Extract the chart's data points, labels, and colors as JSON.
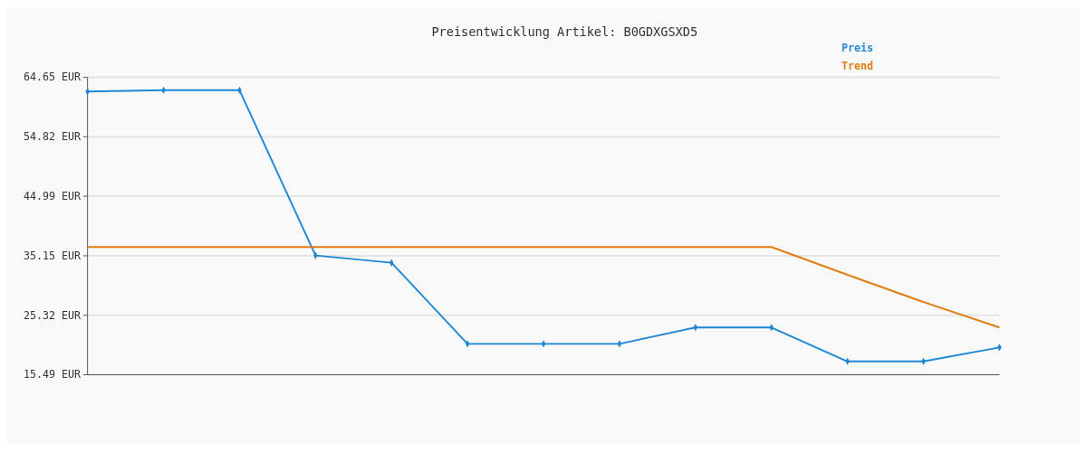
{
  "chart_data": {
    "type": "line",
    "title": "Preisentwicklung Artikel: B0GDXGSXD5",
    "categories": [
      null,
      null,
      null,
      null,
      null,
      null,
      null,
      null,
      null,
      null,
      null,
      null,
      null
    ],
    "series": [
      {
        "name": "Preis",
        "color": "#1f88d6",
        "marker": "diamond",
        "values": [
          62.3,
          62.5,
          62.5,
          35.2,
          34.0,
          20.6,
          20.6,
          20.6,
          23.3,
          23.3,
          17.7,
          17.7,
          20.0
        ]
      },
      {
        "name": "Trend",
        "color": "#e07d10",
        "marker": "none",
        "values": [
          36.6,
          36.6,
          36.6,
          36.6,
          36.6,
          36.6,
          36.6,
          36.6,
          36.6,
          36.6,
          32.0,
          27.5,
          23.3
        ]
      }
    ],
    "ylim": [
      15.49,
      64.65
    ],
    "yticks": [
      {
        "value": 15.49,
        "label": "15.49 EUR"
      },
      {
        "value": 25.32,
        "label": "25.32 EUR"
      },
      {
        "value": 35.15,
        "label": "35.15 EUR"
      },
      {
        "value": 44.99,
        "label": "44.99 EUR"
      },
      {
        "value": 54.82,
        "label": "54.82 EUR"
      },
      {
        "value": 64.65,
        "label": "64.65 EUR"
      }
    ],
    "grid": "y",
    "legend": "top right",
    "line_style": "solid"
  }
}
